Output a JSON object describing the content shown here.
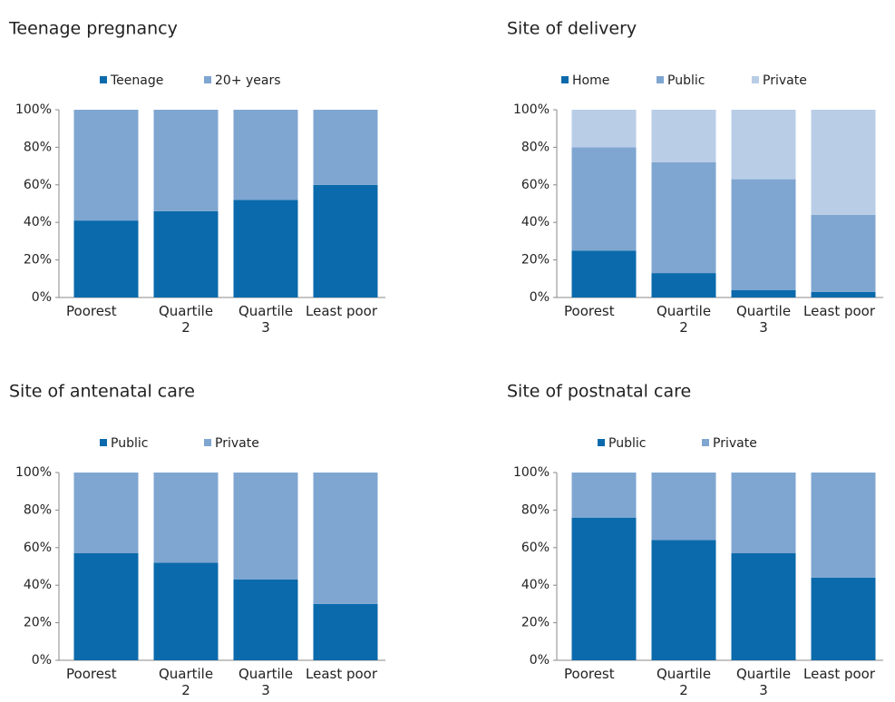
{
  "chart_data": [
    {
      "type": "bar",
      "stacked": true,
      "title": "Teenage pregnancy",
      "categories": [
        "Poorest",
        "Quartile 2",
        "Quartile 3",
        "Least poor"
      ],
      "series": [
        {
          "name": "Teenage",
          "color": "#0b6aab",
          "values": [
            41,
            46,
            52,
            60
          ]
        },
        {
          "name": "20+ years",
          "color": "#7fa6d1",
          "values": [
            59,
            54,
            48,
            40
          ]
        }
      ],
      "ylim": [
        0,
        100
      ],
      "yticks": [
        {
          "value": 0,
          "label": "0%"
        },
        {
          "value": 20,
          "label": "20%"
        },
        {
          "value": 40,
          "label": "40%"
        },
        {
          "value": 60,
          "label": "60%"
        },
        {
          "value": 80,
          "label": "80%"
        },
        {
          "value": 100,
          "label": "100%"
        }
      ]
    },
    {
      "type": "bar",
      "stacked": true,
      "title": "Site of delivery",
      "categories": [
        "Poorest",
        "Quartile 2",
        "Quartile 3",
        "Least poor"
      ],
      "series": [
        {
          "name": "Home",
          "color": "#0b6aab",
          "values": [
            25,
            13,
            4,
            3
          ]
        },
        {
          "name": "Public",
          "color": "#7fa6d1",
          "values": [
            55,
            59,
            59,
            41
          ]
        },
        {
          "name": "Private",
          "color": "#b9cde7",
          "values": [
            20,
            28,
            37,
            56
          ]
        }
      ],
      "ylim": [
        0,
        100
      ],
      "yticks": [
        {
          "value": 0,
          "label": "0%"
        },
        {
          "value": 20,
          "label": "20%"
        },
        {
          "value": 40,
          "label": "40%"
        },
        {
          "value": 60,
          "label": "60%"
        },
        {
          "value": 80,
          "label": "80%"
        },
        {
          "value": 100,
          "label": "100%"
        }
      ]
    },
    {
      "type": "bar",
      "stacked": true,
      "title": "Site of antenatal care",
      "categories": [
        "Poorest",
        "Quartile 2",
        "Quartile 3",
        "Least poor"
      ],
      "series": [
        {
          "name": "Public",
          "color": "#0b6aab",
          "values": [
            57,
            52,
            43,
            30
          ]
        },
        {
          "name": "Private",
          "color": "#7fa6d1",
          "values": [
            43,
            48,
            57,
            70
          ]
        }
      ],
      "ylim": [
        0,
        100
      ],
      "yticks": [
        {
          "value": 0,
          "label": "0%"
        },
        {
          "value": 20,
          "label": "20%"
        },
        {
          "value": 40,
          "label": "40%"
        },
        {
          "value": 60,
          "label": "60%"
        },
        {
          "value": 80,
          "label": "80%"
        },
        {
          "value": 100,
          "label": "100%"
        }
      ]
    },
    {
      "type": "bar",
      "stacked": true,
      "title": "Site of postnatal care",
      "categories": [
        "Poorest",
        "Quartile 2",
        "Quartile 3",
        "Least poor"
      ],
      "series": [
        {
          "name": "Public",
          "color": "#0b6aab",
          "values": [
            76,
            64,
            57,
            44
          ]
        },
        {
          "name": "Private",
          "color": "#7fa6d1",
          "values": [
            24,
            36,
            43,
            56
          ]
        }
      ],
      "ylim": [
        0,
        100
      ],
      "yticks": [
        {
          "value": 0,
          "label": "0%"
        },
        {
          "value": 20,
          "label": "20%"
        },
        {
          "value": 40,
          "label": "40%"
        },
        {
          "value": 60,
          "label": "60%"
        },
        {
          "value": 80,
          "label": "80%"
        },
        {
          "value": 100,
          "label": "100%"
        }
      ]
    }
  ]
}
